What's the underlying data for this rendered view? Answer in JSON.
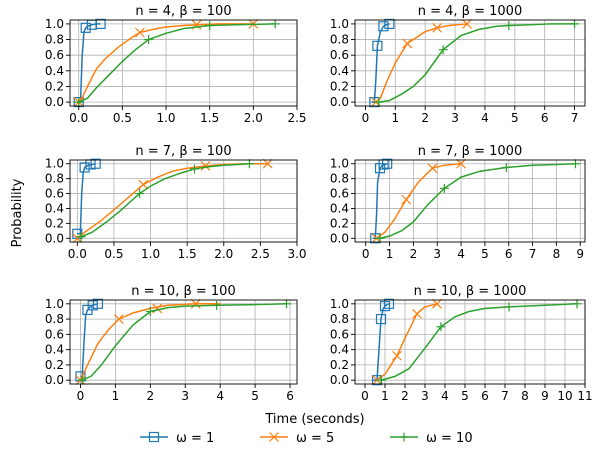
{
  "xlabel": "Time (seconds)",
  "ylabel": "Probability",
  "legend": [
    {
      "label": "ω = 1",
      "color": "#1f77b4",
      "marker": "square"
    },
    {
      "label": "ω = 5",
      "color": "#ff7f0e",
      "marker": "x"
    },
    {
      "label": "ω = 10",
      "color": "#2ca02c",
      "marker": "plus"
    }
  ],
  "chart_data": [
    {
      "type": "line",
      "title": "n = 4, β = 100",
      "xlim": [
        -0.1,
        2.5
      ],
      "ylim": [
        -0.05,
        1.05
      ],
      "xticks": [
        0.0,
        0.5,
        1.0,
        1.5,
        2.0,
        2.5
      ],
      "xtick_labels": [
        "0.0",
        "0.5",
        "1.0",
        "1.5",
        "2.0",
        "2.5"
      ],
      "yticks": [
        0.0,
        0.2,
        0.4,
        0.6,
        0.8,
        1.0
      ],
      "ytick_labels": [
        "0.0",
        "0.2",
        "0.4",
        "0.6",
        "0.8",
        "1.0"
      ],
      "grid": true,
      "series": [
        {
          "name": "ω = 1",
          "color": "#1f77b4",
          "marker": "square",
          "x": [
            0.0,
            0.02,
            0.04,
            0.06,
            0.08,
            0.1,
            0.15,
            0.2,
            0.25
          ],
          "y": [
            0.0,
            0.0,
            0.6,
            0.9,
            0.95,
            0.97,
            0.99,
            1.0,
            1.0
          ],
          "marker_x": [
            0.0,
            0.08,
            0.15,
            0.25
          ],
          "marker_y": [
            0.0,
            0.95,
            0.99,
            1.0
          ]
        },
        {
          "name": "ω = 5",
          "color": "#ff7f0e",
          "marker": "x",
          "x": [
            0.0,
            0.05,
            0.1,
            0.2,
            0.3,
            0.45,
            0.6,
            0.7,
            0.85,
            1.0,
            1.2,
            1.35,
            1.6,
            2.0
          ],
          "y": [
            0.0,
            0.08,
            0.2,
            0.42,
            0.55,
            0.7,
            0.82,
            0.89,
            0.93,
            0.96,
            0.98,
            0.99,
            1.0,
            1.0
          ],
          "marker_x": [
            0.0,
            0.7,
            1.35,
            2.0
          ],
          "marker_y": [
            0.0,
            0.89,
            0.99,
            1.0
          ]
        },
        {
          "name": "ω = 10",
          "color": "#2ca02c",
          "marker": "plus",
          "x": [
            0.0,
            0.1,
            0.2,
            0.35,
            0.5,
            0.65,
            0.8,
            1.0,
            1.2,
            1.5,
            1.8,
            2.25
          ],
          "y": [
            0.0,
            0.05,
            0.18,
            0.35,
            0.52,
            0.67,
            0.8,
            0.88,
            0.94,
            0.98,
            0.99,
            1.0
          ],
          "marker_x": [
            0.0,
            0.8,
            1.5,
            2.25
          ],
          "marker_y": [
            0.0,
            0.8,
            0.98,
            1.0
          ]
        }
      ]
    },
    {
      "type": "line",
      "title": "n = 4, β = 1000",
      "xlim": [
        -0.35,
        7.35
      ],
      "ylim": [
        -0.05,
        1.05
      ],
      "xticks": [
        0,
        1,
        2,
        3,
        4,
        5,
        6,
        7
      ],
      "xtick_labels": [
        "0",
        "1",
        "2",
        "3",
        "4",
        "5",
        "6",
        "7"
      ],
      "yticks": [
        0.0,
        0.2,
        0.4,
        0.6,
        0.8,
        1.0
      ],
      "ytick_labels": [
        "0.0",
        "0.2",
        "0.4",
        "0.6",
        "0.8",
        "1.0"
      ],
      "grid": true,
      "series": [
        {
          "name": "ω = 1",
          "color": "#1f77b4",
          "marker": "square",
          "x": [
            0.2,
            0.3,
            0.35,
            0.4,
            0.5,
            0.6,
            0.7,
            0.8
          ],
          "y": [
            0.0,
            0.0,
            0.3,
            0.72,
            0.9,
            0.97,
            0.99,
            1.0
          ],
          "marker_x": [
            0.3,
            0.4,
            0.6,
            0.8
          ],
          "marker_y": [
            0.0,
            0.72,
            0.97,
            1.0
          ]
        },
        {
          "name": "ω = 5",
          "color": "#ff7f0e",
          "marker": "x",
          "x": [
            0.35,
            0.5,
            0.7,
            1.0,
            1.4,
            2.0,
            2.4,
            2.8,
            3.1,
            3.4
          ],
          "y": [
            0.0,
            0.05,
            0.25,
            0.5,
            0.75,
            0.9,
            0.95,
            0.98,
            0.99,
            1.0
          ],
          "marker_x": [
            0.35,
            1.4,
            2.4,
            3.4
          ],
          "marker_y": [
            0.0,
            0.75,
            0.95,
            1.0
          ]
        },
        {
          "name": "ω = 10",
          "color": "#2ca02c",
          "marker": "plus",
          "x": [
            0.45,
            0.8,
            1.2,
            1.6,
            2.0,
            2.6,
            3.2,
            3.8,
            4.4,
            4.8,
            5.5,
            6.2,
            7.0
          ],
          "y": [
            0.0,
            0.02,
            0.1,
            0.2,
            0.35,
            0.67,
            0.85,
            0.93,
            0.97,
            0.98,
            0.99,
            1.0,
            1.0
          ],
          "marker_x": [
            0.45,
            2.6,
            4.8,
            7.0
          ],
          "marker_y": [
            0.0,
            0.67,
            0.98,
            1.0
          ]
        }
      ]
    },
    {
      "type": "line",
      "title": "n = 7, β = 100",
      "xlim": [
        -0.1,
        3.0
      ],
      "ylim": [
        -0.05,
        1.05
      ],
      "xticks": [
        0.0,
        0.5,
        1.0,
        1.5,
        2.0,
        2.5,
        3.0
      ],
      "xtick_labels": [
        "0.0",
        "0.5",
        "1.0",
        "1.5",
        "2.0",
        "2.5",
        "3.0"
      ],
      "yticks": [
        0.0,
        0.2,
        0.4,
        0.6,
        0.8,
        1.0
      ],
      "ytick_labels": [
        "0.0",
        "0.2",
        "0.4",
        "0.6",
        "0.8",
        "1.0"
      ],
      "grid": true,
      "series": [
        {
          "name": "ω = 1",
          "color": "#1f77b4",
          "marker": "square",
          "x": [
            0.0,
            0.04,
            0.06,
            0.08,
            0.1,
            0.15,
            0.2,
            0.25
          ],
          "y": [
            0.06,
            0.06,
            0.6,
            0.88,
            0.95,
            0.98,
            0.99,
            1.0
          ],
          "marker_x": [
            0.0,
            0.1,
            0.18,
            0.25
          ],
          "marker_y": [
            0.06,
            0.95,
            0.99,
            1.0
          ]
        },
        {
          "name": "ω = 5",
          "color": "#ff7f0e",
          "marker": "x",
          "x": [
            0.0,
            0.1,
            0.3,
            0.5,
            0.7,
            0.9,
            1.1,
            1.3,
            1.5,
            1.75,
            2.0,
            2.3,
            2.6
          ],
          "y": [
            0.0,
            0.08,
            0.22,
            0.38,
            0.55,
            0.72,
            0.82,
            0.9,
            0.94,
            0.97,
            0.99,
            1.0,
            1.0
          ],
          "marker_x": [
            0.0,
            0.9,
            1.75,
            2.6
          ],
          "marker_y": [
            0.0,
            0.72,
            0.97,
            1.0
          ]
        },
        {
          "name": "ω = 10",
          "color": "#2ca02c",
          "marker": "plus",
          "x": [
            0.05,
            0.2,
            0.4,
            0.6,
            0.85,
            1.0,
            1.2,
            1.4,
            1.6,
            1.8,
            2.0,
            2.35
          ],
          "y": [
            0.02,
            0.08,
            0.22,
            0.38,
            0.6,
            0.7,
            0.8,
            0.87,
            0.93,
            0.96,
            0.98,
            1.0
          ],
          "marker_x": [
            0.05,
            0.85,
            1.6,
            2.35
          ],
          "marker_y": [
            0.02,
            0.6,
            0.93,
            1.0
          ]
        }
      ]
    },
    {
      "type": "line",
      "title": "n = 7, β = 1000",
      "xlim": [
        -0.45,
        9.2
      ],
      "ylim": [
        -0.05,
        1.05
      ],
      "xticks": [
        0,
        1,
        2,
        3,
        4,
        5,
        6,
        7,
        8,
        9
      ],
      "xtick_labels": [
        "0",
        "1",
        "2",
        "3",
        "4",
        "5",
        "6",
        "7",
        "8",
        "9"
      ],
      "yticks": [
        0.0,
        0.2,
        0.4,
        0.6,
        0.8,
        1.0
      ],
      "ytick_labels": [
        "0.0",
        "0.2",
        "0.4",
        "0.6",
        "0.8",
        "1.0"
      ],
      "grid": true,
      "series": [
        {
          "name": "ω = 1",
          "color": "#1f77b4",
          "marker": "square",
          "x": [
            0.3,
            0.4,
            0.45,
            0.5,
            0.6,
            0.7,
            0.8,
            0.9
          ],
          "y": [
            0.0,
            0.0,
            0.3,
            0.75,
            0.94,
            0.98,
            0.99,
            1.0
          ],
          "marker_x": [
            0.4,
            0.6,
            0.75,
            0.9
          ],
          "marker_y": [
            0.0,
            0.94,
            0.99,
            1.0
          ]
        },
        {
          "name": "ω = 5",
          "color": "#ff7f0e",
          "marker": "x",
          "x": [
            0.45,
            0.8,
            1.2,
            1.7,
            2.2,
            2.8,
            3.3,
            4.0
          ],
          "y": [
            0.0,
            0.08,
            0.25,
            0.52,
            0.75,
            0.94,
            0.98,
            1.0
          ],
          "marker_x": [
            0.45,
            1.7,
            2.8,
            4.0
          ],
          "marker_y": [
            0.0,
            0.52,
            0.94,
            1.0
          ]
        },
        {
          "name": "ω = 10",
          "color": "#2ca02c",
          "marker": "plus",
          "x": [
            0.6,
            1.0,
            1.5,
            2.0,
            2.6,
            3.3,
            4.0,
            4.8,
            5.9,
            7.0,
            8.0,
            8.8
          ],
          "y": [
            0.0,
            0.03,
            0.1,
            0.22,
            0.45,
            0.67,
            0.82,
            0.9,
            0.95,
            0.98,
            0.99,
            1.0
          ],
          "marker_x": [
            0.6,
            3.3,
            5.9,
            8.8
          ],
          "marker_y": [
            0.0,
            0.67,
            0.95,
            1.0
          ]
        }
      ]
    },
    {
      "type": "line",
      "title": "n = 10, β = 100",
      "xlim": [
        -0.3,
        6.2
      ],
      "ylim": [
        -0.05,
        1.05
      ],
      "xticks": [
        0,
        1,
        2,
        3,
        4,
        5,
        6
      ],
      "xtick_labels": [
        "0",
        "1",
        "2",
        "3",
        "4",
        "5",
        "6"
      ],
      "yticks": [
        0.0,
        0.2,
        0.4,
        0.6,
        0.8,
        1.0
      ],
      "ytick_labels": [
        "0.0",
        "0.2",
        "0.4",
        "0.6",
        "0.8",
        "1.0"
      ],
      "grid": true,
      "series": [
        {
          "name": "ω = 1",
          "color": "#1f77b4",
          "marker": "square",
          "x": [
            0.0,
            0.05,
            0.1,
            0.15,
            0.2,
            0.3,
            0.4,
            0.5
          ],
          "y": [
            0.05,
            0.05,
            0.5,
            0.85,
            0.92,
            0.97,
            0.99,
            1.0
          ],
          "marker_x": [
            0.0,
            0.2,
            0.35,
            0.5
          ],
          "marker_y": [
            0.05,
            0.92,
            0.98,
            1.0
          ]
        },
        {
          "name": "ω = 5",
          "color": "#ff7f0e",
          "marker": "x",
          "x": [
            0.0,
            0.2,
            0.5,
            0.8,
            1.1,
            1.5,
            2.0,
            2.5,
            3.3,
            4.0
          ],
          "y": [
            0.0,
            0.2,
            0.48,
            0.66,
            0.8,
            0.88,
            0.94,
            0.98,
            1.0,
            1.0
          ],
          "marker_x": [
            0.0,
            1.1,
            2.2,
            3.3
          ],
          "marker_y": [
            0.0,
            0.8,
            0.94,
            1.0
          ]
        },
        {
          "name": "ω = 10",
          "color": "#2ca02c",
          "marker": "plus",
          "x": [
            0.0,
            0.3,
            0.6,
            1.0,
            1.5,
            2.0,
            2.5,
            3.0,
            3.9,
            5.0,
            5.9
          ],
          "y": [
            0.0,
            0.05,
            0.2,
            0.45,
            0.72,
            0.9,
            0.95,
            0.97,
            0.98,
            0.99,
            1.0
          ],
          "marker_x": [
            0.05,
            2.0,
            3.9,
            5.9
          ],
          "marker_y": [
            0.0,
            0.9,
            0.98,
            1.0
          ]
        }
      ]
    },
    {
      "type": "line",
      "title": "n = 10, β = 1000",
      "xlim": [
        -0.5,
        11.0
      ],
      "ylim": [
        -0.05,
        1.05
      ],
      "xticks": [
        0,
        1,
        2,
        3,
        4,
        5,
        6,
        7,
        8,
        9,
        10,
        11
      ],
      "xtick_labels": [
        "0",
        "1",
        "2",
        "3",
        "4",
        "5",
        "6",
        "7",
        "8",
        "9",
        "10",
        "11"
      ],
      "yticks": [
        0.0,
        0.2,
        0.4,
        0.6,
        0.8,
        1.0
      ],
      "ytick_labels": [
        "0.0",
        "0.2",
        "0.4",
        "0.6",
        "0.8",
        "1.0"
      ],
      "grid": true,
      "series": [
        {
          "name": "ω = 1",
          "color": "#1f77b4",
          "marker": "square",
          "x": [
            0.4,
            0.6,
            0.7,
            0.8,
            0.9,
            1.0,
            1.1,
            1.2
          ],
          "y": [
            0.0,
            0.0,
            0.4,
            0.8,
            0.93,
            0.97,
            0.99,
            1.0
          ],
          "marker_x": [
            0.6,
            0.8,
            1.0,
            1.2
          ],
          "marker_y": [
            0.0,
            0.8,
            0.97,
            1.0
          ]
        },
        {
          "name": "ω = 5",
          "color": "#ff7f0e",
          "marker": "x",
          "x": [
            0.6,
            1.0,
            1.6,
            2.0,
            2.6,
            3.0,
            3.6
          ],
          "y": [
            0.0,
            0.08,
            0.32,
            0.55,
            0.87,
            0.96,
            1.0
          ],
          "marker_x": [
            0.6,
            1.6,
            2.6,
            3.6
          ],
          "marker_y": [
            0.0,
            0.32,
            0.87,
            1.0
          ]
        },
        {
          "name": "ω = 10",
          "color": "#2ca02c",
          "marker": "plus",
          "x": [
            0.8,
            1.5,
            2.2,
            3.0,
            3.8,
            4.5,
            5.2,
            6.0,
            7.2,
            9.0,
            10.6
          ],
          "y": [
            0.0,
            0.05,
            0.15,
            0.42,
            0.7,
            0.83,
            0.9,
            0.94,
            0.96,
            0.98,
            1.0
          ],
          "marker_x": [
            0.8,
            3.8,
            7.2,
            10.6
          ],
          "marker_y": [
            0.0,
            0.7,
            0.96,
            1.0
          ]
        }
      ]
    }
  ]
}
